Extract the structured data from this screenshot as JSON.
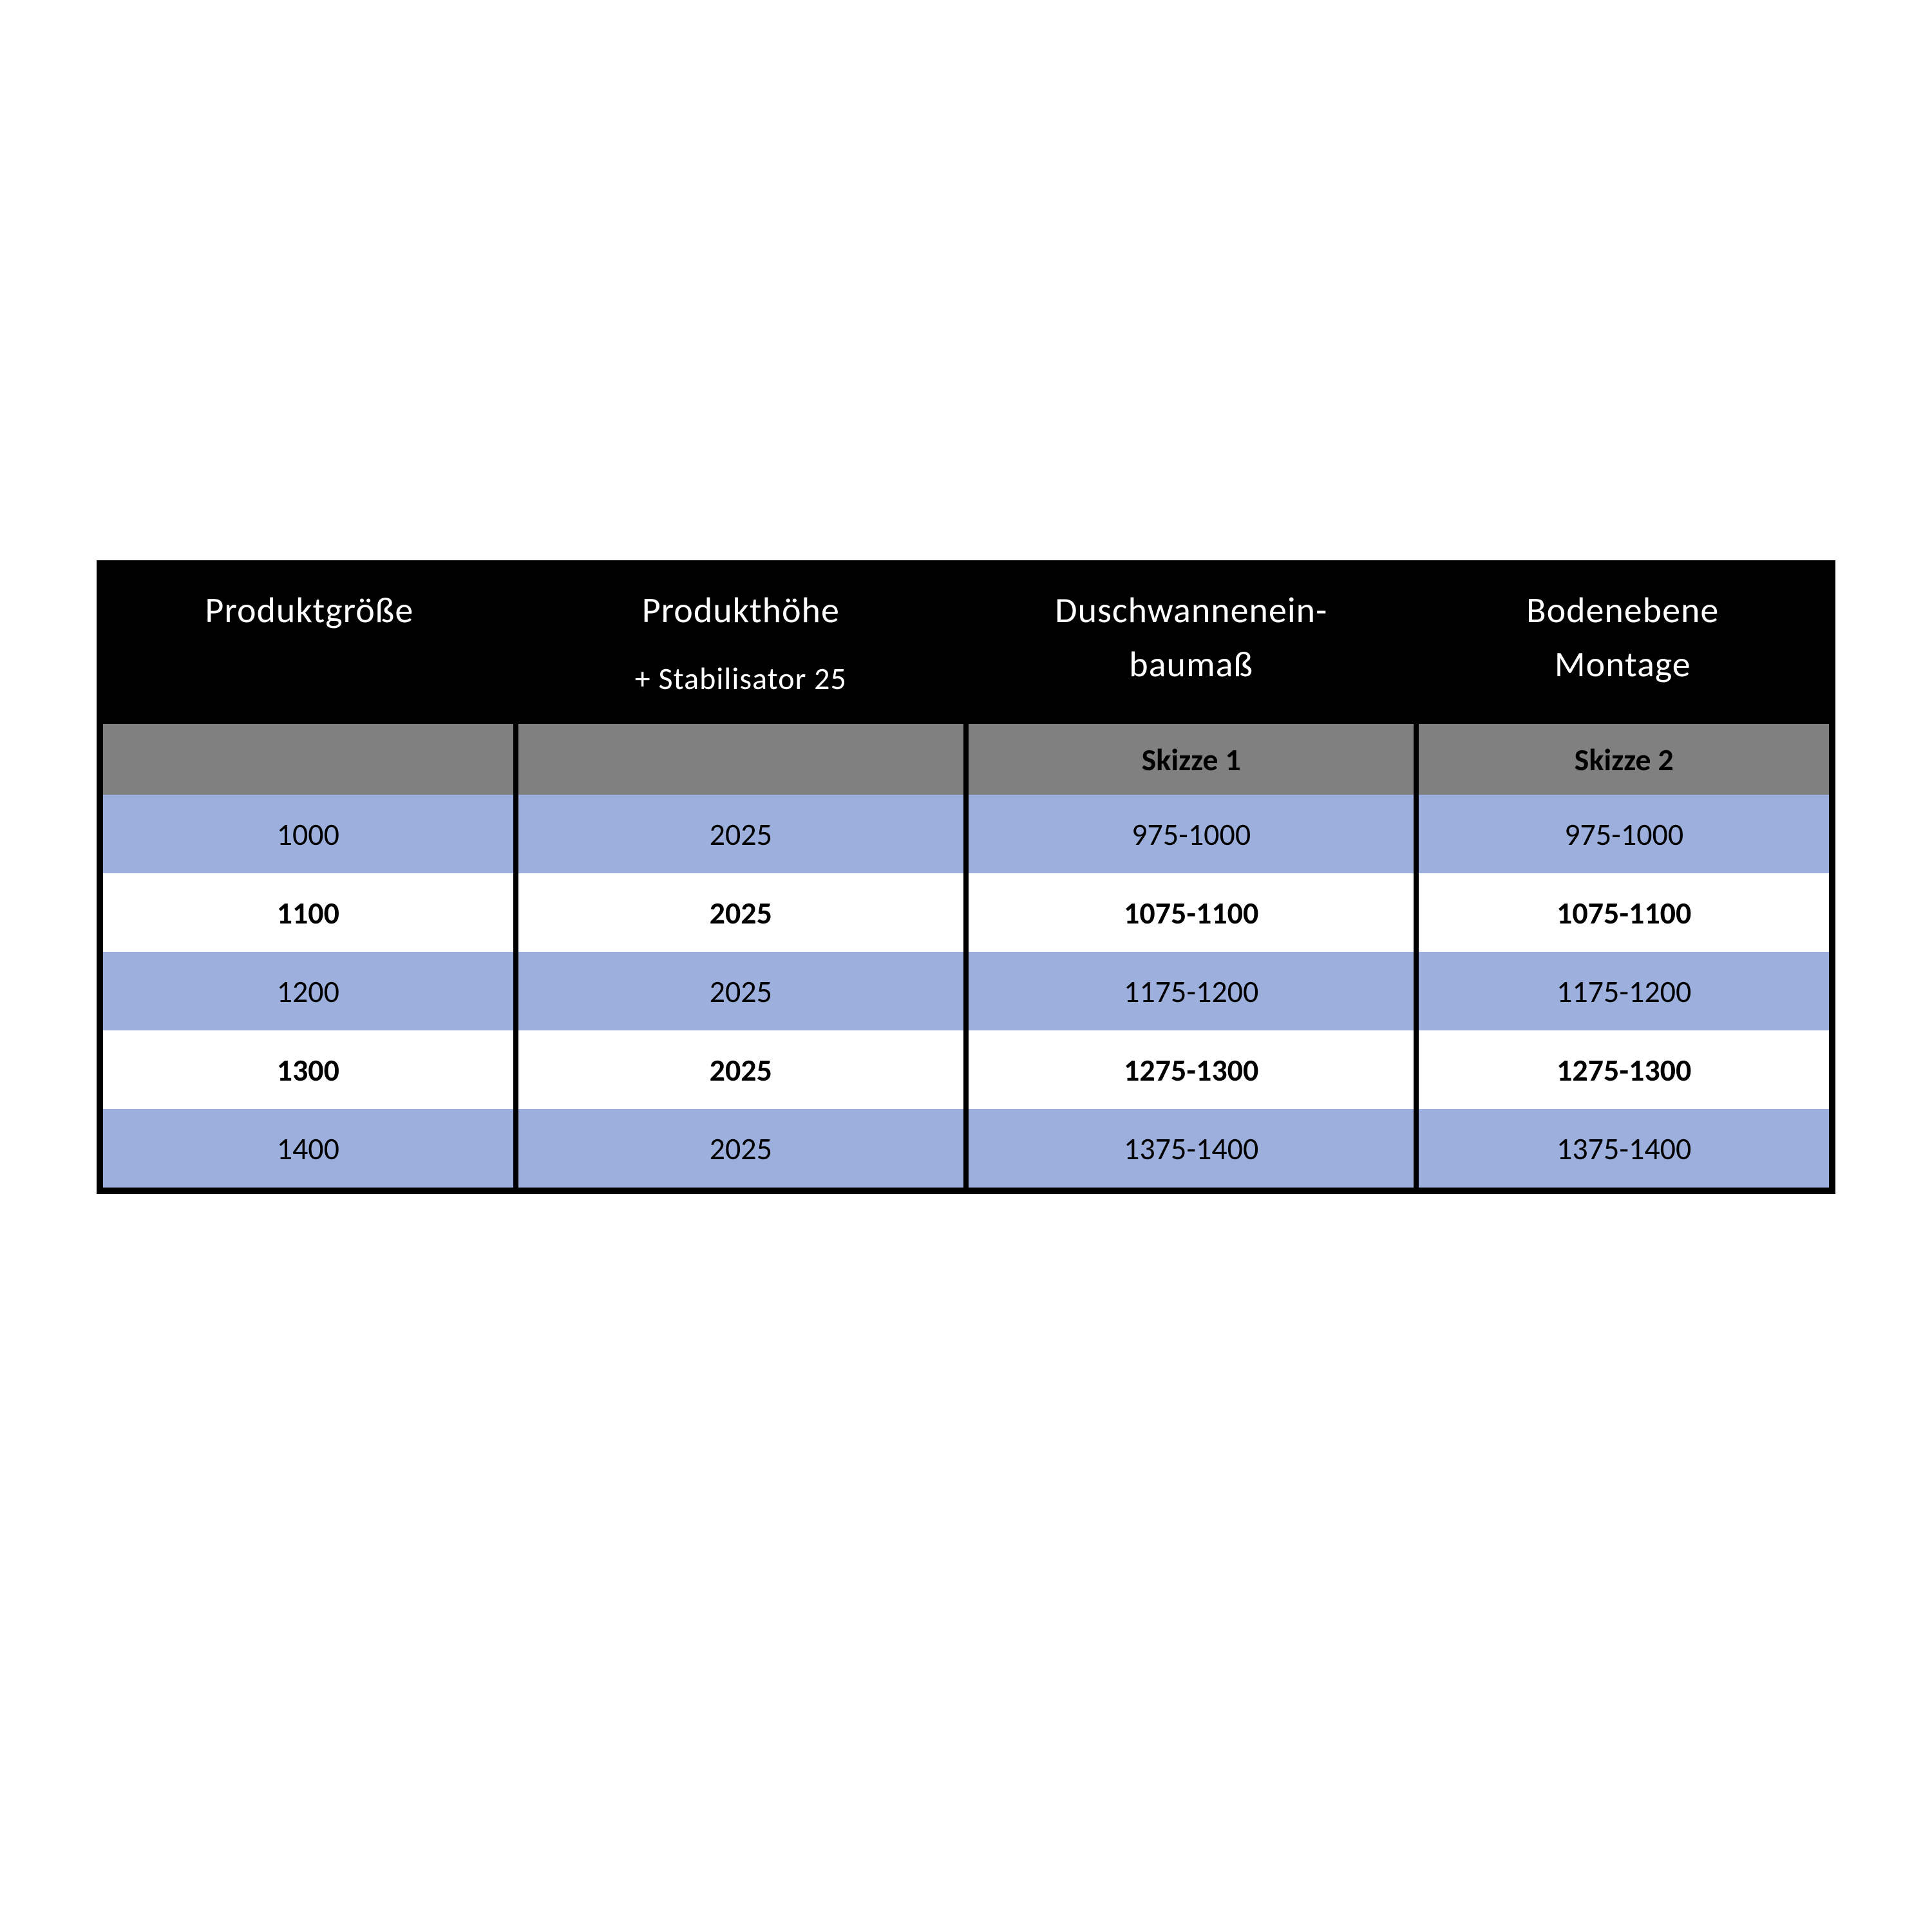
{
  "table": {
    "type": "table",
    "columns": [
      {
        "label_line1": "Produktgröße",
        "label_line2": "",
        "sub": ""
      },
      {
        "label_line1": "Produkthöhe",
        "label_line2": "",
        "sub": "+  Stabilisator 25"
      },
      {
        "label_line1": "Duschwannenein-",
        "label_line2": "baumaß",
        "sub": ""
      },
      {
        "label_line1": "Bodenebene",
        "label_line2": "Montage",
        "sub": ""
      }
    ],
    "subheaders": [
      "",
      "",
      "Skizze 1",
      "Skizze 2"
    ],
    "rows": [
      [
        "1000",
        "2025",
        "975-1000",
        "975-1000"
      ],
      [
        "1100",
        "2025",
        "1075-1100",
        "1075-1100"
      ],
      [
        "1200",
        "2025",
        "1175-1200",
        "1175-1200"
      ],
      [
        "1300",
        "2025",
        "1275-1300",
        "1275-1300"
      ],
      [
        "1400",
        "2025",
        "1375-1400",
        "1375-1400"
      ]
    ],
    "colors": {
      "header_bg": "#000000",
      "header_fg": "#ffffff",
      "subheader_bg": "#808080",
      "row_alt_a": "#9db0dd",
      "row_alt_b": "#ffffff",
      "border": "#000000"
    },
    "font": {
      "header_size_pt": 42,
      "body_size_pt": 36,
      "bold_rows": "white"
    }
  }
}
